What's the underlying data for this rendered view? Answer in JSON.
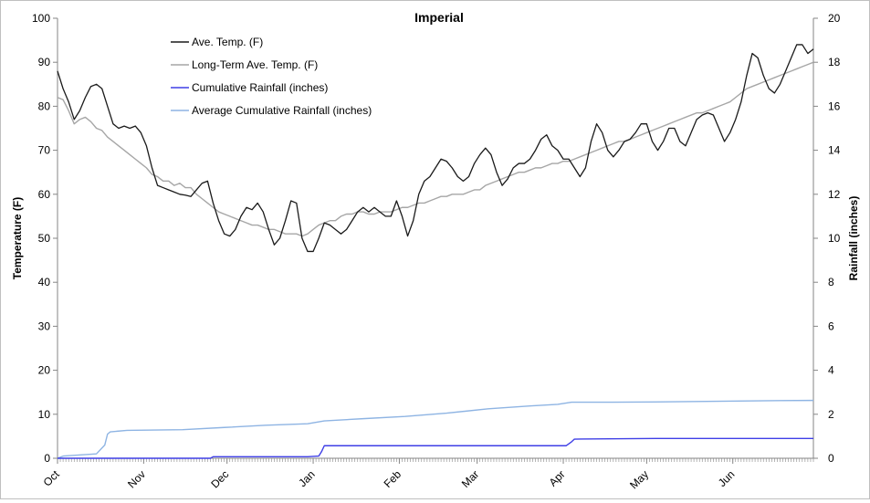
{
  "chart_data": {
    "type": "line",
    "title": "Imperial",
    "ylabel": "Temperature (F)",
    "y2label": "Rainfall (inches)",
    "ylim": [
      0,
      100
    ],
    "y2lim": [
      0,
      20
    ],
    "grid": false,
    "legend_position": "top-left",
    "x_domain_days": [
      0,
      272
    ],
    "months": [
      {
        "label": "Oct",
        "day": 0
      },
      {
        "label": "Nov",
        "day": 31
      },
      {
        "label": "Dec",
        "day": 61
      },
      {
        "label": "Jan",
        "day": 92
      },
      {
        "label": "Feb",
        "day": 123
      },
      {
        "label": "Mar",
        "day": 151
      },
      {
        "label": "Apr",
        "day": 182
      },
      {
        "label": "May",
        "day": 212
      },
      {
        "label": "Jun",
        "day": 243
      }
    ],
    "yticks": [
      "0",
      "10",
      "20",
      "30",
      "40",
      "50",
      "60",
      "70",
      "80",
      "90",
      "100"
    ],
    "y2ticks": [
      "0",
      "2",
      "4",
      "6",
      "8",
      "10",
      "12",
      "14",
      "16",
      "18",
      "20"
    ],
    "series": [
      {
        "name": "Ave. Temp. (F)",
        "axis": "left",
        "color": "#1a1a1a",
        "x": [
          0,
          2,
          4,
          6,
          8,
          10,
          12,
          14,
          16,
          18,
          20,
          22,
          24,
          26,
          28,
          30,
          32,
          34,
          36,
          38,
          40,
          42,
          44,
          46,
          48,
          50,
          52,
          54,
          56,
          58,
          60,
          62,
          64,
          66,
          68,
          70,
          72,
          74,
          76,
          78,
          80,
          82,
          84,
          86,
          88,
          90,
          92,
          94,
          96,
          98,
          100,
          102,
          104,
          106,
          108,
          110,
          112,
          114,
          116,
          118,
          120,
          122,
          124,
          126,
          128,
          130,
          132,
          134,
          136,
          138,
          140,
          142,
          144,
          146,
          148,
          150,
          152,
          154,
          156,
          158,
          160,
          162,
          164,
          166,
          168,
          170,
          172,
          174,
          176,
          178,
          180,
          182,
          184,
          186,
          188,
          190,
          192,
          194,
          196,
          198,
          200,
          202,
          204,
          206,
          208,
          210,
          212,
          214,
          216,
          218,
          220,
          222,
          224,
          226,
          228,
          230,
          232,
          234,
          236,
          238,
          240,
          242,
          244,
          246,
          248,
          250,
          252,
          254,
          256,
          258,
          260,
          262,
          264,
          266,
          268,
          270,
          272
        ],
        "values": [
          88,
          84,
          81,
          77,
          79,
          82,
          84.5,
          85,
          84,
          80,
          76,
          75,
          75.5,
          75,
          75.5,
          74,
          71,
          66,
          62,
          61.5,
          61,
          60.5,
          60,
          59.8,
          59.5,
          61,
          62.5,
          63,
          58,
          54,
          51,
          50.5,
          52,
          55,
          57,
          56.5,
          58,
          56,
          52,
          48.5,
          50,
          54,
          58.5,
          58,
          50,
          47,
          47,
          50,
          53.5,
          53,
          52,
          51,
          52,
          54,
          56,
          57,
          56,
          57,
          56,
          55,
          55,
          58.5,
          55,
          50.5,
          54,
          60,
          63,
          64,
          66,
          68,
          67.5,
          66,
          64,
          63,
          64,
          67,
          69,
          70.5,
          69,
          65,
          62,
          63.5,
          66,
          67,
          67,
          68,
          70,
          72.5,
          73.5,
          71,
          70,
          68,
          68,
          66,
          64,
          66,
          72,
          76,
          74,
          70,
          68.5,
          70,
          72,
          72.5,
          74,
          76,
          76,
          72,
          70,
          72,
          75,
          75,
          72,
          71,
          74,
          77,
          78,
          78.5,
          78,
          75,
          72,
          74,
          77,
          81,
          87,
          92,
          91,
          87,
          84,
          83,
          85,
          88,
          91,
          94,
          94,
          92,
          93
        ]
      },
      {
        "name": "Long-Term Ave. Temp. (F)",
        "axis": "left",
        "color": "#a6a6a6",
        "x": [
          0,
          2,
          4,
          6,
          8,
          10,
          12,
          14,
          16,
          18,
          20,
          22,
          24,
          26,
          28,
          30,
          32,
          34,
          36,
          38,
          40,
          42,
          44,
          46,
          48,
          50,
          52,
          54,
          56,
          58,
          60,
          62,
          64,
          66,
          68,
          70,
          72,
          74,
          76,
          78,
          80,
          82,
          84,
          86,
          88,
          90,
          92,
          94,
          96,
          98,
          100,
          102,
          104,
          106,
          108,
          110,
          112,
          114,
          116,
          118,
          120,
          122,
          124,
          126,
          128,
          130,
          132,
          134,
          136,
          138,
          140,
          142,
          144,
          146,
          148,
          150,
          152,
          154,
          156,
          158,
          160,
          162,
          164,
          166,
          168,
          170,
          172,
          174,
          176,
          178,
          180,
          182,
          184,
          186,
          188,
          190,
          192,
          194,
          196,
          198,
          200,
          202,
          204,
          206,
          208,
          210,
          212,
          214,
          216,
          218,
          220,
          222,
          224,
          226,
          228,
          230,
          232,
          234,
          236,
          238,
          240,
          242,
          244,
          246,
          248,
          250,
          252,
          254,
          256,
          258,
          260,
          262,
          264,
          266,
          268,
          270,
          272
        ],
        "values": [
          82,
          81.5,
          79,
          76,
          77,
          77.5,
          76.5,
          75,
          74.5,
          73,
          72,
          71,
          70,
          69,
          68,
          67,
          66,
          64.5,
          64,
          63,
          63,
          62,
          62.5,
          61.5,
          61.5,
          60,
          59,
          58,
          57,
          56,
          55.5,
          55,
          54.5,
          54,
          53.5,
          53,
          53,
          52.5,
          52,
          52,
          51.5,
          51,
          51,
          51,
          50.5,
          51,
          52,
          53,
          53.5,
          54,
          54,
          55,
          55.5,
          55.5,
          56,
          56,
          55.5,
          55.5,
          56,
          56,
          56,
          56.5,
          57,
          57,
          57.5,
          58,
          58,
          58.5,
          59,
          59.5,
          59.5,
          60,
          60,
          60,
          60.5,
          61,
          61,
          62,
          62.5,
          63,
          63.5,
          64,
          64.5,
          65,
          65,
          65.5,
          66,
          66,
          66.5,
          67,
          67,
          67.5,
          67.5,
          68,
          68.5,
          69,
          69.5,
          70,
          70.5,
          71,
          71.5,
          72,
          72,
          72.5,
          73,
          73.5,
          74,
          74.5,
          75,
          75.5,
          76,
          76.5,
          77,
          77.5,
          78,
          78.5,
          78.5,
          79,
          79.5,
          80,
          80.5,
          81,
          82,
          83,
          84,
          84.5,
          85,
          85.5,
          86,
          86.5,
          87,
          87.5,
          88,
          88.5,
          89,
          89.5,
          90
        ]
      },
      {
        "name": "Cumulative Rainfall (inches)",
        "axis": "right",
        "color": "#3f3fe6",
        "x": [
          0,
          55,
          56,
          90,
          94,
          95,
          96,
          183,
          185,
          186,
          215,
          272
        ],
        "values": [
          0,
          0,
          0.07,
          0.07,
          0.1,
          0.3,
          0.57,
          0.57,
          0.75,
          0.87,
          0.9,
          0.9
        ]
      },
      {
        "name": "Average Cumulative Rainfall (inches)",
        "axis": "right",
        "color": "#8eb4e3",
        "x": [
          0,
          2,
          14,
          17,
          18,
          19,
          25,
          45,
          60,
          75,
          90,
          96,
          110,
          125,
          140,
          155,
          170,
          180,
          185,
          200,
          215,
          230,
          245,
          260,
          272
        ],
        "values": [
          0,
          0.1,
          0.2,
          0.6,
          1.1,
          1.2,
          1.27,
          1.3,
          1.4,
          1.5,
          1.57,
          1.7,
          1.8,
          1.9,
          2.05,
          2.25,
          2.38,
          2.45,
          2.55,
          2.55,
          2.56,
          2.58,
          2.6,
          2.62,
          2.63
        ]
      }
    ]
  }
}
